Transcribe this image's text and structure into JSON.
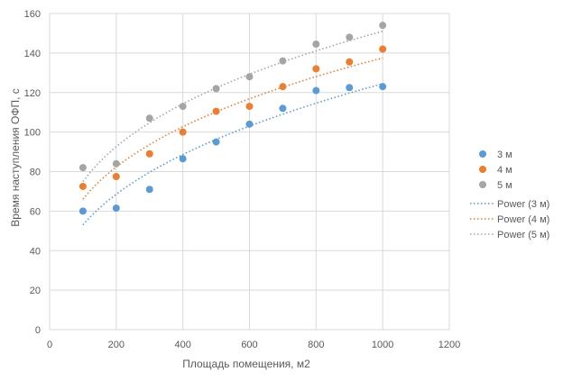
{
  "chart_data": {
    "type": "scatter",
    "xlabel": "Площадь помещения,  м2",
    "ylabel": "Время наступления ОФП, с",
    "xlim": [
      0,
      1200
    ],
    "ylim": [
      0,
      160
    ],
    "xticks": [
      0,
      200,
      400,
      600,
      800,
      1000,
      1200
    ],
    "yticks": [
      0,
      20,
      40,
      60,
      80,
      100,
      120,
      140,
      160
    ],
    "grid": "vertical and horizontal",
    "legend_position": "right",
    "series": [
      {
        "name": "3 м",
        "color": "#5b9bd5",
        "x": [
          100,
          200,
          300,
          400,
          500,
          600,
          700,
          800,
          900,
          1000
        ],
        "y": [
          60,
          61.5,
          71,
          86.5,
          95,
          104,
          112,
          121,
          122.5,
          123
        ]
      },
      {
        "name": "4 м",
        "color": "#ed7d31",
        "x": [
          100,
          200,
          300,
          400,
          500,
          600,
          700,
          800,
          900,
          1000
        ],
        "y": [
          72.5,
          77.5,
          89,
          100,
          110.5,
          113,
          123,
          132,
          135.5,
          142
        ]
      },
      {
        "name": "5 м",
        "color": "#a5a5a5",
        "x": [
          100,
          200,
          300,
          400,
          500,
          600,
          700,
          800,
          900,
          1000
        ],
        "y": [
          82,
          84,
          107,
          113,
          122,
          128,
          136,
          144.5,
          148,
          154
        ]
      }
    ],
    "trendlines": [
      {
        "name": "Power (3 м)",
        "color": "#5b9bd5",
        "type": "power",
        "x_range": [
          100,
          1000
        ],
        "y_at_xmin": 53,
        "y_at_xmax": 124.5
      },
      {
        "name": "Power (4 м)",
        "color": "#ed7d31",
        "type": "power",
        "x_range": [
          100,
          1000
        ],
        "y_at_xmin": 66,
        "y_at_xmax": 137.5
      },
      {
        "name": "Power (5 м)",
        "color": "#a5a5a5",
        "type": "power",
        "x_range": [
          100,
          1000
        ],
        "y_at_xmin": 75,
        "y_at_xmax": 151
      }
    ]
  }
}
